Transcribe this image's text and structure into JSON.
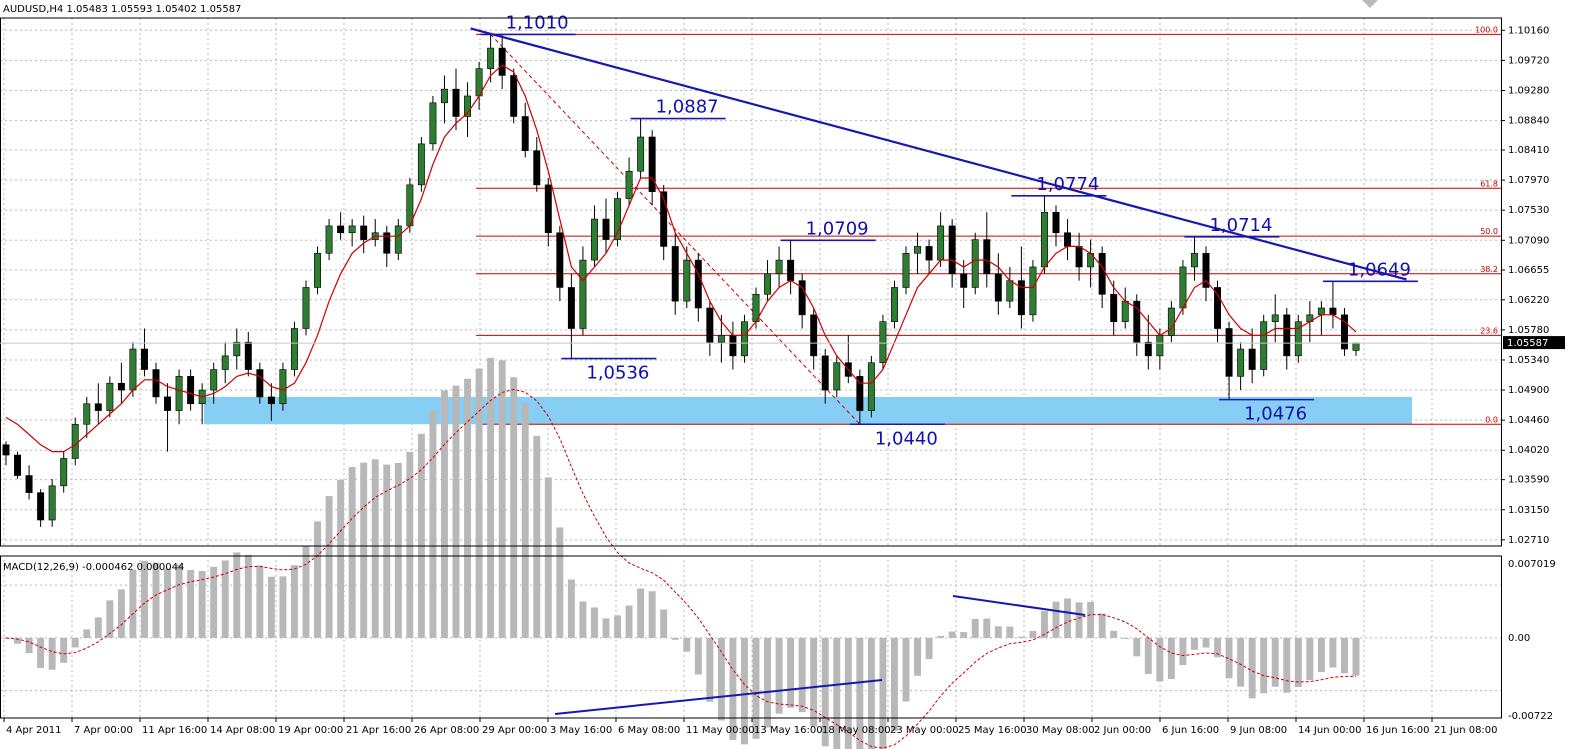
{
  "chart_data": [
    {
      "type": "candlestick",
      "title": "AUDUSD,H4  1.05483 1.05593 1.05402 1.05587",
      "y_ticks": [
        "1.10160",
        "1.09720",
        "1.09280",
        "1.08840",
        "1.08410",
        "1.07970",
        "1.07530",
        "1.07090",
        "1.06655",
        "1.06220",
        "1.05780",
        "1.05340",
        "1.04900",
        "1.04460",
        "1.04020",
        "1.03590",
        "1.03150",
        "1.02710"
      ],
      "ylim": [
        1.0271,
        1.1016
      ],
      "current_price": "1.05587",
      "x_ticks": [
        "4 Apr 2011",
        "7 Apr 00:00",
        "11 Apr 16:00",
        "14 Apr 08:00",
        "19 Apr 00:00",
        "21 Apr 16:00",
        "26 Apr 08:00",
        "29 Apr 00:00",
        "3 May 16:00",
        "6 May 08:00",
        "11 May 00:00",
        "13 May 16:00",
        "18 May 08:00",
        "23 May 00:00",
        "25 May 16:00",
        "30 May 08:00",
        "2 Jun 00:00",
        "6 Jun 16:00",
        "9 Jun 08:00",
        "14 Jun 00:00",
        "16 Jun 16:00",
        "21 Jun 08:00"
      ],
      "ohlc": [
        [
          1.041,
          1.0415,
          1.038,
          1.0395
        ],
        [
          1.0395,
          1.04,
          1.036,
          1.0365
        ],
        [
          1.0365,
          1.038,
          1.033,
          1.034
        ],
        [
          1.034,
          1.0345,
          1.029,
          1.03
        ],
        [
          1.03,
          1.036,
          1.029,
          1.035
        ],
        [
          1.035,
          1.04,
          1.034,
          1.039
        ],
        [
          1.039,
          1.045,
          1.038,
          1.044
        ],
        [
          1.044,
          1.048,
          1.042,
          1.047
        ],
        [
          1.047,
          1.05,
          1.044,
          1.046
        ],
        [
          1.046,
          1.051,
          1.045,
          1.05
        ],
        [
          1.05,
          1.053,
          1.047,
          1.049
        ],
        [
          1.049,
          1.056,
          1.048,
          1.055
        ],
        [
          1.055,
          1.058,
          1.051,
          1.052
        ],
        [
          1.052,
          1.053,
          1.047,
          1.048
        ],
        [
          1.048,
          1.05,
          1.04,
          1.046
        ],
        [
          1.046,
          1.052,
          1.044,
          1.051
        ],
        [
          1.051,
          1.052,
          1.046,
          1.047
        ],
        [
          1.047,
          1.05,
          1.044,
          1.049
        ],
        [
          1.049,
          1.053,
          1.047,
          1.052
        ],
        [
          1.052,
          1.056,
          1.05,
          1.054
        ],
        [
          1.054,
          1.058,
          1.052,
          1.056
        ],
        [
          1.056,
          1.0575,
          1.051,
          1.052
        ],
        [
          1.052,
          1.053,
          1.047,
          1.048
        ],
        [
          1.048,
          1.05,
          1.0445,
          1.047
        ],
        [
          1.047,
          1.053,
          1.046,
          1.052
        ],
        [
          1.052,
          1.059,
          1.051,
          1.058
        ],
        [
          1.058,
          1.065,
          1.057,
          1.064
        ],
        [
          1.064,
          1.07,
          1.063,
          1.069
        ],
        [
          1.069,
          1.074,
          1.068,
          1.073
        ],
        [
          1.073,
          1.075,
          1.071,
          1.072
        ],
        [
          1.072,
          1.074,
          1.07,
          1.073
        ],
        [
          1.073,
          1.0745,
          1.069,
          1.071
        ],
        [
          1.071,
          1.074,
          1.07,
          1.072
        ],
        [
          1.072,
          1.073,
          1.067,
          1.069
        ],
        [
          1.069,
          1.074,
          1.068,
          1.073
        ],
        [
          1.073,
          1.08,
          1.072,
          1.079
        ],
        [
          1.079,
          1.086,
          1.078,
          1.085
        ],
        [
          1.085,
          1.092,
          1.084,
          1.091
        ],
        [
          1.091,
          1.095,
          1.088,
          1.093
        ],
        [
          1.093,
          1.096,
          1.087,
          1.089
        ],
        [
          1.089,
          1.094,
          1.086,
          1.092
        ],
        [
          1.092,
          1.097,
          1.09,
          1.096
        ],
        [
          1.096,
          1.101,
          1.094,
          1.099
        ],
        [
          1.099,
          1.101,
          1.093,
          1.095
        ],
        [
          1.095,
          1.096,
          1.088,
          1.089
        ],
        [
          1.089,
          1.091,
          1.083,
          1.084
        ],
        [
          1.084,
          1.086,
          1.078,
          1.079
        ],
        [
          1.079,
          1.08,
          1.07,
          1.072
        ],
        [
          1.072,
          1.073,
          1.062,
          1.064
        ],
        [
          1.064,
          1.066,
          1.0536,
          1.058
        ],
        [
          1.058,
          1.07,
          1.057,
          1.068
        ],
        [
          1.068,
          1.076,
          1.067,
          1.074
        ],
        [
          1.074,
          1.077,
          1.069,
          1.071
        ],
        [
          1.071,
          1.078,
          1.07,
          1.077
        ],
        [
          1.077,
          1.083,
          1.076,
          1.081
        ],
        [
          1.081,
          1.0887,
          1.08,
          1.086
        ],
        [
          1.086,
          1.087,
          1.076,
          1.078
        ],
        [
          1.078,
          1.079,
          1.068,
          1.07
        ],
        [
          1.07,
          1.072,
          1.06,
          1.062
        ],
        [
          1.062,
          1.07,
          1.061,
          1.068
        ],
        [
          1.068,
          1.069,
          1.059,
          1.061
        ],
        [
          1.061,
          1.062,
          1.054,
          1.056
        ],
        [
          1.056,
          1.06,
          1.053,
          1.057
        ],
        [
          1.057,
          1.059,
          1.052,
          1.054
        ],
        [
          1.054,
          1.06,
          1.053,
          1.059
        ],
        [
          1.059,
          1.064,
          1.058,
          1.063
        ],
        [
          1.063,
          1.068,
          1.062,
          1.066
        ],
        [
          1.066,
          1.07,
          1.064,
          1.068
        ],
        [
          1.068,
          1.0709,
          1.063,
          1.065
        ],
        [
          1.065,
          1.066,
          1.058,
          1.06
        ],
        [
          1.06,
          1.061,
          1.052,
          1.054
        ],
        [
          1.054,
          1.055,
          1.047,
          1.049
        ],
        [
          1.049,
          1.054,
          1.048,
          1.053
        ],
        [
          1.053,
          1.057,
          1.05,
          1.051
        ],
        [
          1.051,
          1.052,
          1.044,
          1.046
        ],
        [
          1.046,
          1.054,
          1.045,
          1.053
        ],
        [
          1.053,
          1.06,
          1.052,
          1.059
        ],
        [
          1.059,
          1.065,
          1.058,
          1.064
        ],
        [
          1.064,
          1.07,
          1.063,
          1.069
        ],
        [
          1.069,
          1.072,
          1.066,
          1.07
        ],
        [
          1.07,
          1.071,
          1.066,
          1.068
        ],
        [
          1.068,
          1.075,
          1.067,
          1.073
        ],
        [
          1.073,
          1.074,
          1.064,
          1.066
        ],
        [
          1.066,
          1.068,
          1.061,
          1.064
        ],
        [
          1.064,
          1.072,
          1.063,
          1.071
        ],
        [
          1.071,
          1.075,
          1.064,
          1.066
        ],
        [
          1.066,
          1.069,
          1.06,
          1.062
        ],
        [
          1.062,
          1.067,
          1.061,
          1.065
        ],
        [
          1.065,
          1.07,
          1.058,
          1.06
        ],
        [
          1.06,
          1.068,
          1.059,
          1.067
        ],
        [
          1.067,
          1.0774,
          1.066,
          1.075
        ],
        [
          1.075,
          1.076,
          1.07,
          1.072
        ],
        [
          1.072,
          1.074,
          1.068,
          1.07
        ],
        [
          1.07,
          1.072,
          1.065,
          1.067
        ],
        [
          1.067,
          1.071,
          1.064,
          1.069
        ],
        [
          1.069,
          1.07,
          1.061,
          1.063
        ],
        [
          1.063,
          1.065,
          1.057,
          1.059
        ],
        [
          1.059,
          1.064,
          1.058,
          1.062
        ],
        [
          1.062,
          1.063,
          1.054,
          1.056
        ],
        [
          1.056,
          1.06,
          1.052,
          1.054
        ],
        [
          1.054,
          1.058,
          1.052,
          1.057
        ],
        [
          1.057,
          1.062,
          1.056,
          1.061
        ],
        [
          1.061,
          1.068,
          1.06,
          1.067
        ],
        [
          1.067,
          1.0714,
          1.065,
          1.069
        ],
        [
          1.069,
          1.07,
          1.062,
          1.064
        ],
        [
          1.064,
          1.065,
          1.056,
          1.058
        ],
        [
          1.058,
          1.059,
          1.0476,
          1.051
        ],
        [
          1.051,
          1.056,
          1.049,
          1.055
        ],
        [
          1.055,
          1.058,
          1.05,
          1.052
        ],
        [
          1.052,
          1.06,
          1.051,
          1.059
        ],
        [
          1.059,
          1.063,
          1.056,
          1.06
        ],
        [
          1.06,
          1.061,
          1.052,
          1.054
        ],
        [
          1.054,
          1.06,
          1.053,
          1.059
        ],
        [
          1.059,
          1.062,
          1.056,
          1.06
        ],
        [
          1.06,
          1.062,
          1.057,
          1.061
        ],
        [
          1.061,
          1.0649,
          1.058,
          1.06
        ],
        [
          1.06,
          1.061,
          1.054,
          1.055
        ],
        [
          1.0548,
          1.0559,
          1.054,
          1.0559
        ]
      ],
      "ma": [
        1.045,
        1.044,
        1.0425,
        1.041,
        1.04,
        1.04,
        1.041,
        1.0425,
        1.044,
        1.0455,
        1.047,
        1.049,
        1.0505,
        1.0505,
        1.0495,
        1.049,
        1.0485,
        1.048,
        1.0485,
        1.0495,
        1.051,
        1.0515,
        1.051,
        1.0495,
        1.049,
        1.05,
        1.053,
        1.057,
        1.062,
        1.066,
        1.069,
        1.0705,
        1.0715,
        1.0715,
        1.0715,
        1.073,
        1.077,
        1.082,
        1.086,
        1.088,
        1.0895,
        1.092,
        1.095,
        1.0965,
        1.0955,
        1.092,
        1.087,
        1.081,
        1.074,
        1.067,
        1.065,
        1.067,
        1.069,
        1.072,
        1.076,
        1.08,
        1.08,
        1.077,
        1.072,
        1.069,
        1.066,
        1.062,
        1.059,
        1.057,
        1.057,
        1.059,
        1.062,
        1.064,
        1.065,
        1.064,
        1.061,
        1.057,
        1.054,
        1.052,
        1.05,
        1.05,
        1.052,
        1.056,
        1.06,
        1.064,
        1.066,
        1.068,
        1.068,
        1.067,
        1.068,
        1.068,
        1.067,
        1.065,
        1.064,
        1.064,
        1.067,
        1.069,
        1.07,
        1.07,
        1.069,
        1.067,
        1.064,
        1.062,
        1.061,
        1.059,
        1.057,
        1.058,
        1.061,
        1.064,
        1.065,
        1.063,
        1.06,
        1.058,
        1.057,
        1.057,
        1.058,
        1.058,
        1.058,
        1.059,
        1.06,
        1.06,
        1.059,
        1.0575
      ],
      "fibonacci": [
        {
          "label": "100.0",
          "value": 1.101
        },
        {
          "label": "61.8",
          "value": 1.0785
        },
        {
          "label": "50.0",
          "value": 1.0715
        },
        {
          "label": "38.2",
          "value": 1.066
        },
        {
          "label": "23.6",
          "value": 1.057
        },
        {
          "label": "0.0",
          "value": 1.044
        }
      ],
      "annotations": [
        {
          "text": "1,1010",
          "value": 1.101,
          "index": 42
        },
        {
          "text": "1,0887",
          "value": 1.0887,
          "index": 55
        },
        {
          "text": "1,0709",
          "value": 1.0709,
          "index": 68
        },
        {
          "text": "1,0774",
          "value": 1.0774,
          "index": 88
        },
        {
          "text": "1,0714",
          "value": 1.0714,
          "index": 103
        },
        {
          "text": "1,0649",
          "value": 1.0649,
          "index": 115
        },
        {
          "text": "1,0536",
          "value": 1.0536,
          "index": 49
        },
        {
          "text": "1,0440",
          "value": 1.044,
          "index": 74
        },
        {
          "text": "1,0476",
          "value": 1.0476,
          "index": 106
        }
      ],
      "support_zone": [
        1.044,
        1.048
      ],
      "trendline": {
        "from_index": 42,
        "from": 1.101,
        "to_index": 116,
        "to": 1.064
      }
    },
    {
      "type": "bar",
      "title": "MACD(12,26,9) -0.000462 0.000044",
      "y_ticks": [
        "0.007019",
        "0.00",
        "-0.00722"
      ],
      "ylim": [
        -0.00722,
        0.007019
      ]
    }
  ]
}
